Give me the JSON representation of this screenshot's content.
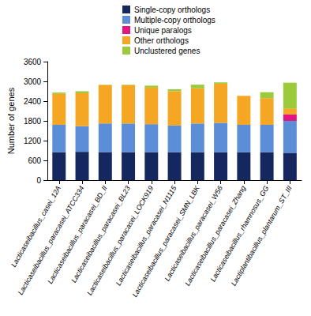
{
  "chart_data": {
    "type": "bar",
    "stacked": true,
    "grid": false,
    "legend": "top",
    "ylabel": "Number of genes",
    "categories": [
      "Lacticaseibacillus_casei_12A",
      "Lacticaseibacillus_paracasei_ATCC334",
      "Lacticaseibacillus_paracasei_BD_II",
      "Lacticaseibacillus_paracasei_BL23",
      "Lacticaseibacillus_paracasei_LOCK919",
      "Lacticaseibacillus_paracasei_N1115",
      "Lacticaseibacillus_paracasei_SMN_LBK",
      "Lacticaseibacillus_paracasei_W56",
      "Lacticaseibacillus_paracasei_Zhang",
      "Lacticaseibacillus_rhamnosus_GG",
      "Lactiplantibacillus_plantarum_ST_III"
    ],
    "series": [
      {
        "name": "Single-copy orthologs",
        "color": "#14275f",
        "values": [
          850,
          860,
          850,
          850,
          850,
          850,
          850,
          850,
          850,
          850,
          830
        ]
      },
      {
        "name": "Multiple-copy orthologs",
        "color": "#5b8ed6",
        "values": [
          830,
          780,
          870,
          870,
          850,
          810,
          870,
          890,
          830,
          830,
          970
        ]
      },
      {
        "name": "Unique paralogs",
        "color": "#e3157f",
        "values": [
          0,
          0,
          0,
          0,
          0,
          0,
          0,
          0,
          0,
          0,
          200
        ]
      },
      {
        "name": "Other orthologs",
        "color": "#f5a623",
        "values": [
          940,
          1000,
          1170,
          1170,
          1110,
          1040,
          1070,
          1190,
          880,
          810,
          180
        ]
      },
      {
        "name": "Unclustered genes",
        "color": "#9bcb3b",
        "values": [
          40,
          60,
          10,
          10,
          60,
          60,
          110,
          40,
          0,
          180,
          780
        ]
      }
    ],
    "ylim": [
      0,
      3600
    ],
    "yticks": [
      0,
      600,
      1200,
      1800,
      2400,
      3000,
      3600
    ]
  }
}
